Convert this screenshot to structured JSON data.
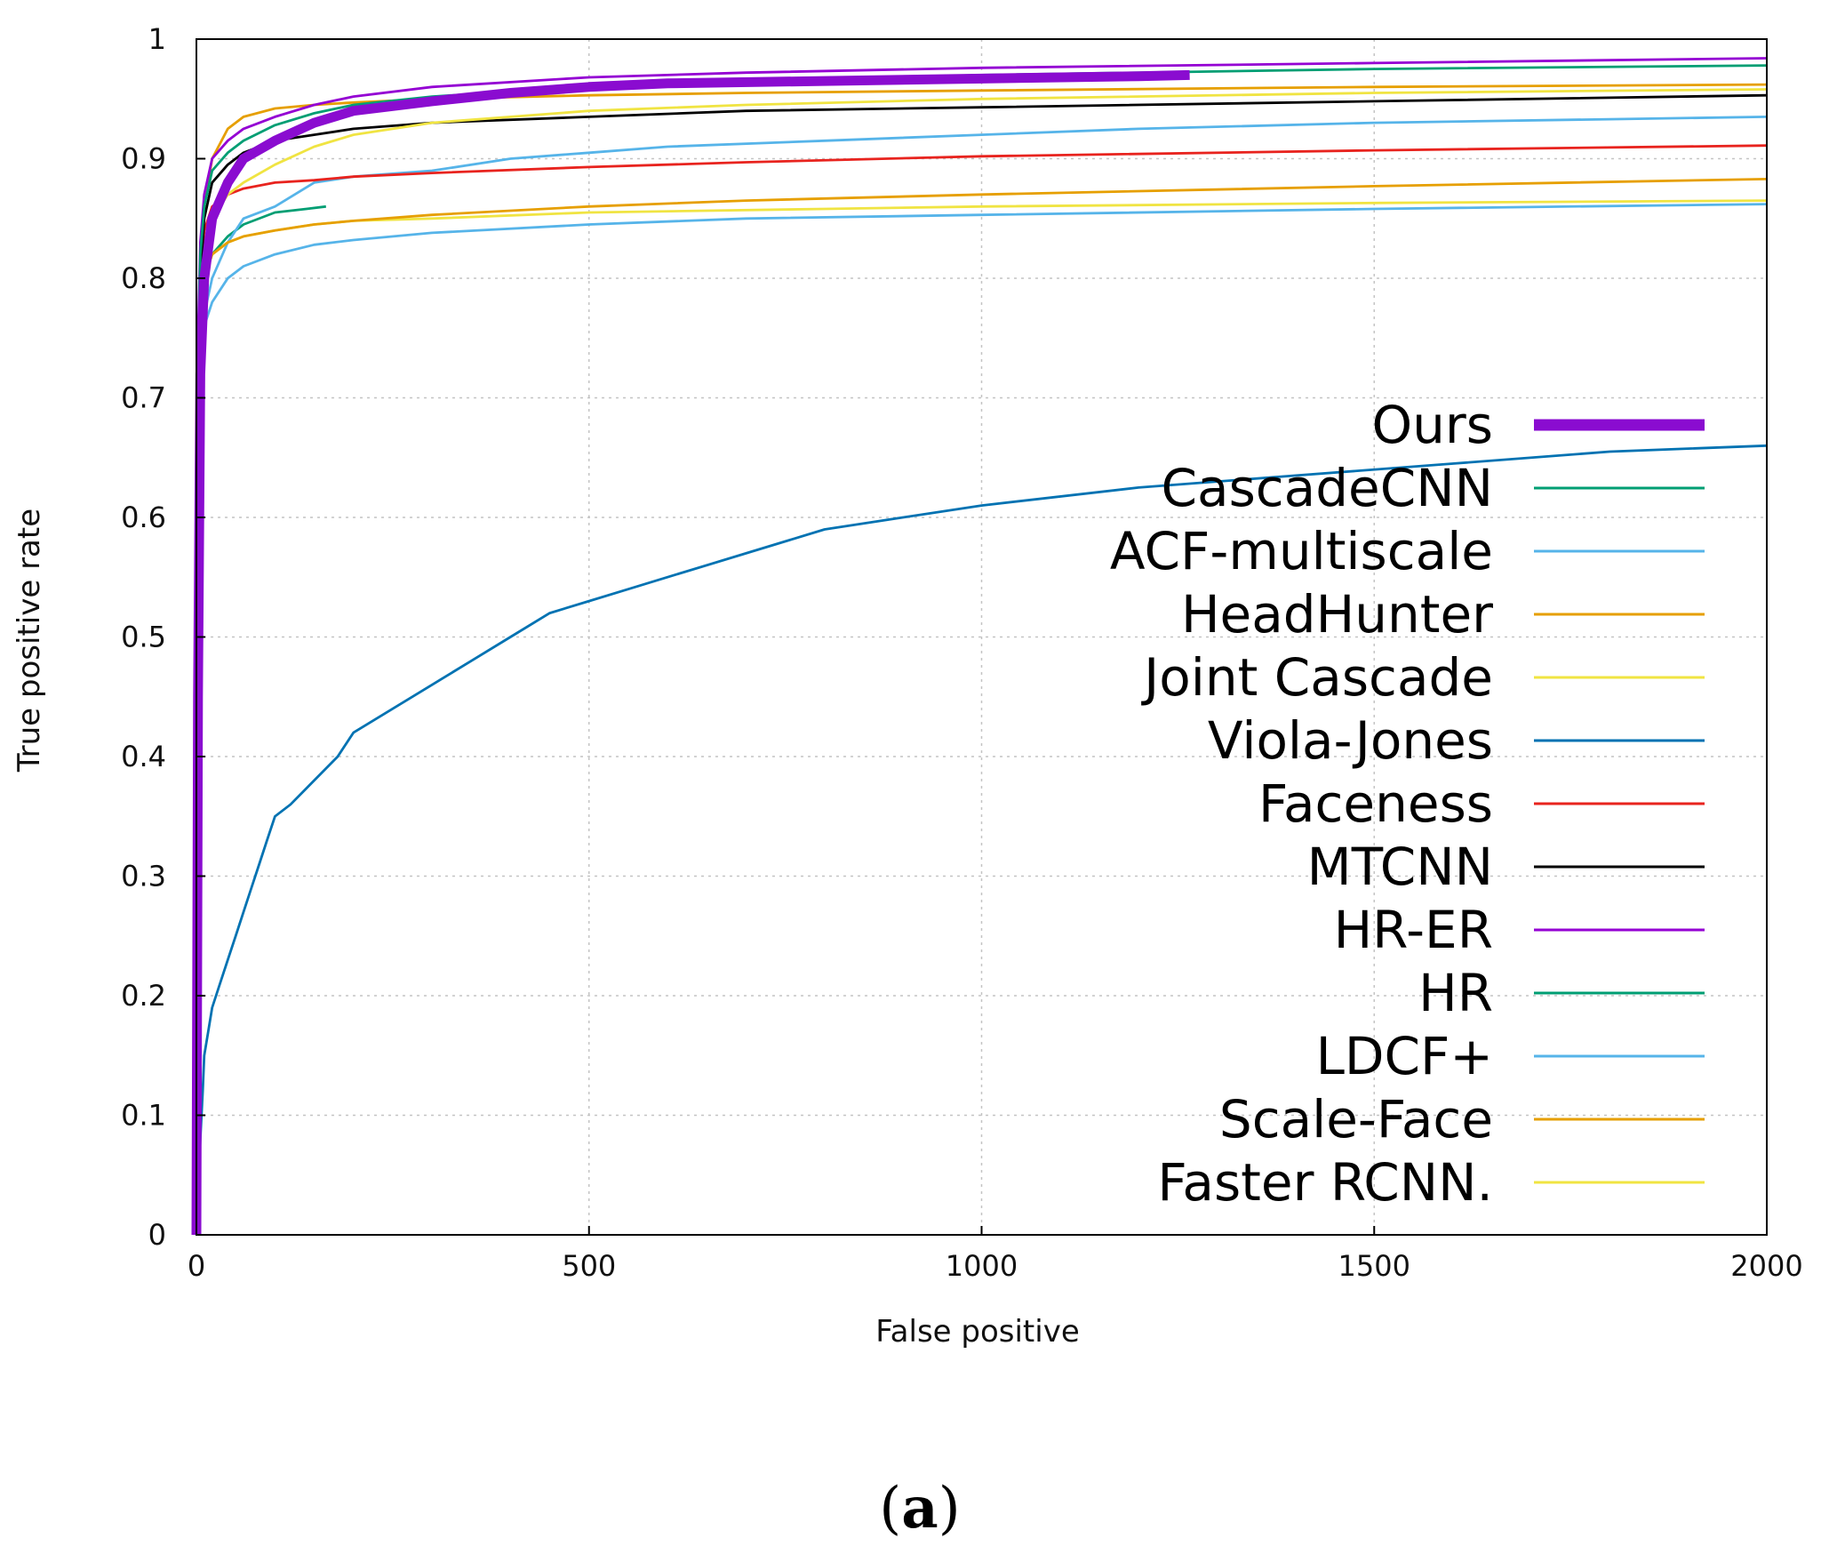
{
  "chart_data": {
    "type": "line",
    "title": "",
    "xlabel": "False positive",
    "ylabel": "True positive rate",
    "xlim": [
      0,
      2000
    ],
    "ylim": [
      0,
      1
    ],
    "xticks": [
      "0",
      "500",
      "1000",
      "1500",
      "2000"
    ],
    "yticks": [
      "0",
      "0.1",
      "0.2",
      "0.3",
      "0.4",
      "0.5",
      "0.6",
      "0.7",
      "0.8",
      "0.9",
      "1"
    ],
    "grid": true,
    "legend_position": "right",
    "caption_letter": "a",
    "caption_open": "(",
    "caption_close": ")",
    "series": [
      {
        "name": "Ours",
        "color": "#8a0cd0",
        "thick": true,
        "x": [
          0,
          2,
          5,
          10,
          20,
          40,
          60,
          100,
          150,
          200,
          300,
          400,
          500,
          600,
          800,
          1000,
          1200,
          1265
        ],
        "y": [
          0,
          0.45,
          0.72,
          0.8,
          0.85,
          0.88,
          0.9,
          0.915,
          0.93,
          0.94,
          0.948,
          0.955,
          0.96,
          0.963,
          0.965,
          0.967,
          0.969,
          0.97
        ]
      },
      {
        "name": "CascadeCNN",
        "color": "#009e73",
        "thick": false,
        "x": [
          0,
          2,
          5,
          10,
          20,
          40,
          60,
          100,
          140,
          165
        ],
        "y": [
          0,
          0.62,
          0.75,
          0.8,
          0.82,
          0.835,
          0.845,
          0.855,
          0.858,
          0.86
        ]
      },
      {
        "name": "ACF-multiscale",
        "color": "#56b4e9",
        "thick": false,
        "x": [
          0,
          2,
          5,
          10,
          20,
          40,
          60,
          100,
          150,
          200,
          300,
          400,
          500,
          600,
          800,
          1000,
          1200,
          1500,
          1800,
          2000
        ],
        "y": [
          0,
          0.65,
          0.74,
          0.77,
          0.8,
          0.83,
          0.85,
          0.86,
          0.88,
          0.885,
          0.89,
          0.9,
          0.905,
          0.91,
          0.915,
          0.92,
          0.925,
          0.93,
          0.933,
          0.935
        ]
      },
      {
        "name": "HeadHunter",
        "color": "#e69f00",
        "thick": false,
        "x": [
          0,
          2,
          5,
          10,
          20,
          40,
          60,
          100,
          150,
          200,
          300,
          500,
          700,
          1000,
          1500,
          2000
        ],
        "y": [
          0,
          0.7,
          0.8,
          0.86,
          0.9,
          0.925,
          0.935,
          0.942,
          0.945,
          0.947,
          0.95,
          0.953,
          0.955,
          0.957,
          0.96,
          0.962
        ]
      },
      {
        "name": "Joint Cascade",
        "color": "#f0e442",
        "thick": false,
        "x": [
          0,
          2,
          5,
          10,
          20,
          40,
          60,
          100,
          150,
          200,
          300,
          500,
          800,
          1000,
          1500,
          2000
        ],
        "y": [
          0,
          0.6,
          0.75,
          0.8,
          0.82,
          0.83,
          0.835,
          0.84,
          0.845,
          0.848,
          0.85,
          0.855,
          0.858,
          0.86,
          0.863,
          0.865
        ]
      },
      {
        "name": "Viola-Jones",
        "color": "#0072b2",
        "thick": false,
        "x": [
          0,
          3,
          5,
          8,
          10,
          15,
          20,
          30,
          40,
          50,
          60,
          70,
          80,
          90,
          100,
          120,
          150,
          180,
          200,
          250,
          300,
          350,
          400,
          450,
          500,
          550,
          600,
          700,
          800,
          900,
          1000,
          1200,
          1400,
          1600,
          1800,
          2000
        ],
        "y": [
          0,
          0.05,
          0.08,
          0.12,
          0.15,
          0.17,
          0.19,
          0.21,
          0.23,
          0.25,
          0.27,
          0.29,
          0.31,
          0.33,
          0.35,
          0.36,
          0.38,
          0.4,
          0.42,
          0.44,
          0.46,
          0.48,
          0.5,
          0.52,
          0.53,
          0.54,
          0.55,
          0.57,
          0.59,
          0.6,
          0.61,
          0.625,
          0.635,
          0.645,
          0.655,
          0.66
        ]
      },
      {
        "name": "Faceness",
        "color": "#e8231e",
        "thick": false,
        "x": [
          0,
          2,
          5,
          10,
          20,
          40,
          60,
          100,
          150,
          200,
          300,
          500,
          700,
          1000,
          1500,
          2000
        ],
        "y": [
          0,
          0.72,
          0.8,
          0.84,
          0.86,
          0.87,
          0.875,
          0.88,
          0.882,
          0.885,
          0.888,
          0.893,
          0.897,
          0.902,
          0.907,
          0.911
        ]
      },
      {
        "name": "MTCNN",
        "color": "#000000",
        "thick": false,
        "x": [
          0,
          2,
          5,
          10,
          20,
          40,
          60,
          100,
          150,
          200,
          300,
          500,
          700,
          1000,
          1500,
          2000
        ],
        "y": [
          0,
          0.7,
          0.8,
          0.85,
          0.88,
          0.895,
          0.905,
          0.915,
          0.92,
          0.925,
          0.93,
          0.935,
          0.94,
          0.943,
          0.948,
          0.953
        ]
      },
      {
        "name": "HR-ER",
        "color": "#9400d3",
        "thick": false,
        "x": [
          0,
          2,
          5,
          10,
          20,
          40,
          60,
          100,
          150,
          200,
          300,
          500,
          700,
          1000,
          1500,
          2000
        ],
        "y": [
          0,
          0.75,
          0.83,
          0.87,
          0.9,
          0.915,
          0.925,
          0.935,
          0.945,
          0.952,
          0.96,
          0.968,
          0.972,
          0.976,
          0.98,
          0.984
        ]
      },
      {
        "name": "HR",
        "color": "#009e73",
        "thick": false,
        "x": [
          0,
          2,
          5,
          10,
          20,
          40,
          60,
          100,
          150,
          200,
          300,
          500,
          700,
          1000,
          1500,
          2000
        ],
        "y": [
          0,
          0.72,
          0.82,
          0.86,
          0.89,
          0.905,
          0.915,
          0.928,
          0.938,
          0.945,
          0.952,
          0.96,
          0.965,
          0.97,
          0.975,
          0.978
        ]
      },
      {
        "name": "LDCF+",
        "color": "#56b4e9",
        "thick": false,
        "x": [
          0,
          2,
          5,
          10,
          20,
          40,
          60,
          100,
          150,
          200,
          300,
          500,
          700,
          1000,
          1500,
          2000
        ],
        "y": [
          0,
          0.6,
          0.72,
          0.76,
          0.78,
          0.8,
          0.81,
          0.82,
          0.828,
          0.832,
          0.838,
          0.845,
          0.85,
          0.853,
          0.858,
          0.862
        ]
      },
      {
        "name": "Scale-Face",
        "color": "#e69f00",
        "thick": false,
        "x": [
          0,
          2,
          5,
          10,
          20,
          40,
          60,
          100,
          150,
          200,
          300,
          500,
          700,
          1000,
          1500,
          2000
        ],
        "y": [
          0,
          0.65,
          0.76,
          0.8,
          0.82,
          0.83,
          0.835,
          0.84,
          0.845,
          0.848,
          0.853,
          0.86,
          0.865,
          0.87,
          0.877,
          0.883
        ]
      },
      {
        "name": "Faster RCNN.",
        "color": "#f0e442",
        "thick": false,
        "x": [
          0,
          2,
          5,
          10,
          20,
          40,
          60,
          100,
          150,
          200,
          300,
          500,
          700,
          1000,
          1500,
          2000
        ],
        "y": [
          0,
          0.7,
          0.78,
          0.82,
          0.85,
          0.87,
          0.88,
          0.895,
          0.91,
          0.92,
          0.93,
          0.94,
          0.945,
          0.95,
          0.955,
          0.958
        ]
      }
    ]
  }
}
